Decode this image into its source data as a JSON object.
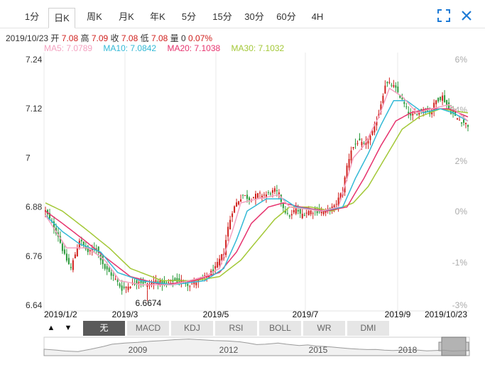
{
  "tabs": [
    {
      "label": "1分",
      "active": false
    },
    {
      "label": "日K",
      "active": true
    },
    {
      "label": "周K",
      "active": false
    },
    {
      "label": "月K",
      "active": false
    },
    {
      "label": "年K",
      "active": false
    },
    {
      "label": "5分",
      "active": false
    },
    {
      "label": "15分",
      "active": false
    },
    {
      "label": "30分",
      "active": false
    },
    {
      "label": "60分",
      "active": false
    },
    {
      "label": "4H",
      "active": false
    }
  ],
  "icons": {
    "fullscreen": "fullscreen-icon",
    "close": "close-icon"
  },
  "info": {
    "date": "2019/10/23",
    "open_label": "开",
    "open": "7.08",
    "high_label": "高",
    "high": "7.09",
    "close_label": "收",
    "close": "7.08",
    "low_label": "低",
    "low": "7.08",
    "vol_label": "量",
    "vol": "0",
    "change": "0.07%"
  },
  "ma": {
    "ma5": "MA5: 7.0789",
    "ma10": "MA10: 7.0842",
    "ma20": "MA20: 7.1038",
    "ma30": "MA30: 7.1032",
    "colors": {
      "ma5": "#f4a1c0",
      "ma10": "#33b9d6",
      "ma20": "#e6336e",
      "ma30": "#a3c837"
    }
  },
  "colors": {
    "up": "#d0201d",
    "down": "#2a9a3a",
    "axis": "#333333",
    "pct": "#aaaaaa"
  },
  "indicators": [
    {
      "label": "无",
      "active": true
    },
    {
      "label": "MACD",
      "active": false
    },
    {
      "label": "KDJ",
      "active": false
    },
    {
      "label": "RSI",
      "active": false
    },
    {
      "label": "BOLL",
      "active": false
    },
    {
      "label": "WR",
      "active": false
    },
    {
      "label": "DMI",
      "active": false
    }
  ],
  "arrows": {
    "up": "▲",
    "down": "▼"
  },
  "navigator": {
    "years": [
      "2009",
      "2012",
      "2015",
      "2018"
    ]
  },
  "chart_data": {
    "type": "candlestick",
    "title": "",
    "ylim": [
      6.64,
      7.24
    ],
    "y_ticks": [
      "7.24",
      "7.12",
      "7",
      "6.88",
      "6.76",
      "6.64"
    ],
    "pct_ticks": [
      "6%",
      "4%",
      "2%",
      "0%",
      "-1%",
      "-3%"
    ],
    "x_ticks": [
      "2019/1/2",
      "2019/3",
      "2019/5",
      "2019/7",
      "2019/9",
      "2019/10/23"
    ],
    "annotation": {
      "label": "6.6674",
      "value": 6.6674
    },
    "close_anchors": [
      [
        0,
        6.87
      ],
      [
        3,
        6.84
      ],
      [
        6,
        6.81
      ],
      [
        9,
        6.76
      ],
      [
        12,
        6.73
      ],
      [
        16,
        6.8
      ],
      [
        20,
        6.77
      ],
      [
        24,
        6.78
      ],
      [
        28,
        6.73
      ],
      [
        32,
        6.71
      ],
      [
        36,
        6.68
      ],
      [
        40,
        6.69
      ],
      [
        44,
        6.7
      ],
      [
        48,
        6.69
      ],
      [
        52,
        6.7
      ],
      [
        56,
        6.69
      ],
      [
        60,
        6.7
      ],
      [
        64,
        6.7
      ],
      [
        68,
        6.69
      ],
      [
        72,
        6.7
      ],
      [
        76,
        6.71
      ],
      [
        80,
        6.73
      ],
      [
        84,
        6.77
      ],
      [
        86,
        6.83
      ],
      [
        88,
        6.87
      ],
      [
        90,
        6.89
      ],
      [
        93,
        6.91
      ],
      [
        96,
        6.9
      ],
      [
        100,
        6.91
      ],
      [
        104,
        6.91
      ],
      [
        108,
        6.92
      ],
      [
        110,
        6.91
      ],
      [
        112,
        6.88
      ],
      [
        114,
        6.86
      ],
      [
        116,
        6.86
      ],
      [
        118,
        6.88
      ],
      [
        120,
        6.86
      ],
      [
        124,
        6.87
      ],
      [
        128,
        6.87
      ],
      [
        132,
        6.87
      ],
      [
        136,
        6.88
      ],
      [
        140,
        6.92
      ],
      [
        142,
        6.98
      ],
      [
        144,
        7.02
      ],
      [
        147,
        7.04
      ],
      [
        150,
        7.03
      ],
      [
        154,
        7.06
      ],
      [
        157,
        7.11
      ],
      [
        160,
        7.18
      ],
      [
        163,
        7.18
      ],
      [
        166,
        7.16
      ],
      [
        169,
        7.13
      ],
      [
        172,
        7.1
      ],
      [
        175,
        7.11
      ],
      [
        178,
        7.12
      ],
      [
        181,
        7.11
      ],
      [
        184,
        7.14
      ],
      [
        187,
        7.15
      ],
      [
        190,
        7.12
      ],
      [
        193,
        7.1
      ],
      [
        196,
        7.09
      ],
      [
        199,
        7.08
      ]
    ],
    "ma": {
      "ma5": [
        [
          0,
          6.86
        ],
        [
          10,
          6.78
        ],
        [
          20,
          6.78
        ],
        [
          28,
          6.75
        ],
        [
          35,
          6.7
        ],
        [
          45,
          6.69
        ],
        [
          60,
          6.69
        ],
        [
          75,
          6.71
        ],
        [
          82,
          6.73
        ],
        [
          88,
          6.82
        ],
        [
          92,
          6.89
        ],
        [
          100,
          6.9
        ],
        [
          110,
          6.91
        ],
        [
          115,
          6.88
        ],
        [
          130,
          6.87
        ],
        [
          138,
          6.88
        ],
        [
          145,
          7.0
        ],
        [
          150,
          7.03
        ],
        [
          157,
          7.1
        ],
        [
          162,
          7.17
        ],
        [
          168,
          7.15
        ],
        [
          175,
          7.11
        ],
        [
          182,
          7.12
        ],
        [
          190,
          7.13
        ],
        [
          199,
          7.09
        ]
      ],
      "ma10": [
        [
          0,
          6.86
        ],
        [
          8,
          6.82
        ],
        [
          16,
          6.79
        ],
        [
          26,
          6.77
        ],
        [
          34,
          6.72
        ],
        [
          45,
          6.7
        ],
        [
          60,
          6.69
        ],
        [
          75,
          6.7
        ],
        [
          84,
          6.73
        ],
        [
          90,
          6.8
        ],
        [
          95,
          6.87
        ],
        [
          104,
          6.9
        ],
        [
          112,
          6.9
        ],
        [
          118,
          6.88
        ],
        [
          130,
          6.87
        ],
        [
          140,
          6.88
        ],
        [
          146,
          6.95
        ],
        [
          152,
          7.01
        ],
        [
          158,
          7.08
        ],
        [
          164,
          7.14
        ],
        [
          170,
          7.14
        ],
        [
          178,
          7.11
        ],
        [
          186,
          7.12
        ],
        [
          192,
          7.11
        ],
        [
          199,
          7.09
        ]
      ],
      "ma20": [
        [
          0,
          6.87
        ],
        [
          8,
          6.84
        ],
        [
          18,
          6.8
        ],
        [
          30,
          6.75
        ],
        [
          40,
          6.71
        ],
        [
          55,
          6.69
        ],
        [
          70,
          6.7
        ],
        [
          82,
          6.72
        ],
        [
          90,
          6.77
        ],
        [
          97,
          6.84
        ],
        [
          105,
          6.88
        ],
        [
          112,
          6.89
        ],
        [
          120,
          6.88
        ],
        [
          132,
          6.87
        ],
        [
          142,
          6.88
        ],
        [
          150,
          6.95
        ],
        [
          158,
          7.03
        ],
        [
          165,
          7.09
        ],
        [
          172,
          7.11
        ],
        [
          180,
          7.12
        ],
        [
          190,
          7.12
        ],
        [
          199,
          7.1
        ]
      ],
      "ma30": [
        [
          0,
          6.89
        ],
        [
          8,
          6.87
        ],
        [
          18,
          6.83
        ],
        [
          30,
          6.78
        ],
        [
          40,
          6.73
        ],
        [
          55,
          6.7
        ],
        [
          70,
          6.7
        ],
        [
          82,
          6.71
        ],
        [
          92,
          6.75
        ],
        [
          100,
          6.8
        ],
        [
          108,
          6.85
        ],
        [
          115,
          6.88
        ],
        [
          125,
          6.88
        ],
        [
          135,
          6.87
        ],
        [
          145,
          6.89
        ],
        [
          152,
          6.93
        ],
        [
          160,
          7.0
        ],
        [
          168,
          7.07
        ],
        [
          176,
          7.1
        ],
        [
          186,
          7.12
        ],
        [
          199,
          7.11
        ]
      ]
    },
    "navigator_points": [
      [
        0,
        0.35
      ],
      [
        3,
        0.3
      ],
      [
        5,
        0.25
      ],
      [
        8,
        0.22
      ],
      [
        11,
        0.35
      ],
      [
        14,
        0.5
      ],
      [
        16,
        0.62
      ],
      [
        19,
        0.68
      ],
      [
        22,
        0.72
      ],
      [
        25,
        0.78
      ],
      [
        28,
        0.82
      ],
      [
        31,
        0.87
      ],
      [
        34,
        0.9
      ],
      [
        37,
        0.86
      ],
      [
        40,
        0.82
      ],
      [
        43,
        0.8
      ],
      [
        46,
        0.75
      ],
      [
        48,
        0.68
      ],
      [
        50,
        0.6
      ],
      [
        52,
        0.62
      ],
      [
        55,
        0.68
      ],
      [
        57,
        0.62
      ],
      [
        60,
        0.55
      ],
      [
        62,
        0.58
      ],
      [
        64,
        0.52
      ],
      [
        66,
        0.5
      ],
      [
        68,
        0.46
      ],
      [
        70,
        0.42
      ],
      [
        72,
        0.38
      ],
      [
        74,
        0.35
      ],
      [
        76,
        0.33
      ],
      [
        78,
        0.34
      ],
      [
        80,
        0.3
      ],
      [
        82,
        0.28
      ],
      [
        84,
        0.3
      ],
      [
        86,
        0.32
      ],
      [
        88,
        0.3
      ],
      [
        90,
        0.26
      ],
      [
        92,
        0.28
      ],
      [
        94,
        0.3
      ],
      [
        96,
        0.25
      ],
      [
        98,
        0.27
      ],
      [
        100,
        0.28
      ]
    ]
  }
}
